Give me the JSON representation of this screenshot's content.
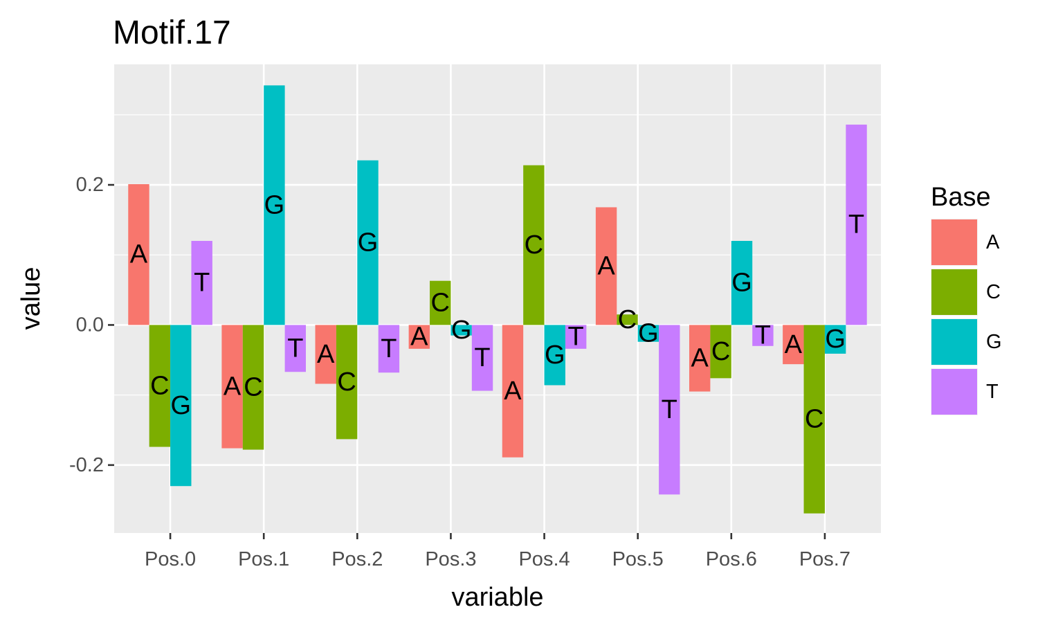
{
  "chart_data": {
    "type": "bar",
    "title": "Motif.17",
    "xlabel": "variable",
    "ylabel": "value",
    "categories": [
      "Pos.0",
      "Pos.1",
      "Pos.2",
      "Pos.3",
      "Pos.4",
      "Pos.5",
      "Pos.6",
      "Pos.7"
    ],
    "ylim": [
      -0.297,
      0.372
    ],
    "yticks": [
      -0.2,
      0.0,
      0.2
    ],
    "ytick_labels": [
      "-0.2",
      "0.0",
      "0.2"
    ],
    "grid": true,
    "legend": {
      "title": "Base",
      "position": "right"
    },
    "series": [
      {
        "name": "A",
        "color": "#F8766D",
        "values": [
          0.201,
          -0.176,
          -0.084,
          -0.034,
          -0.189,
          0.168,
          -0.095,
          -0.056
        ]
      },
      {
        "name": "C",
        "color": "#7CAE00",
        "values": [
          -0.174,
          -0.178,
          -0.163,
          0.063,
          0.228,
          0.015,
          -0.076,
          -0.269
        ]
      },
      {
        "name": "G",
        "color": "#00BFC4",
        "values": [
          -0.23,
          0.342,
          0.235,
          -0.015,
          -0.086,
          -0.024,
          0.12,
          -0.041
        ]
      },
      {
        "name": "T",
        "color": "#C77CFF",
        "values": [
          0.12,
          -0.067,
          -0.068,
          -0.094,
          -0.034,
          -0.242,
          -0.03,
          0.286
        ]
      }
    ]
  }
}
